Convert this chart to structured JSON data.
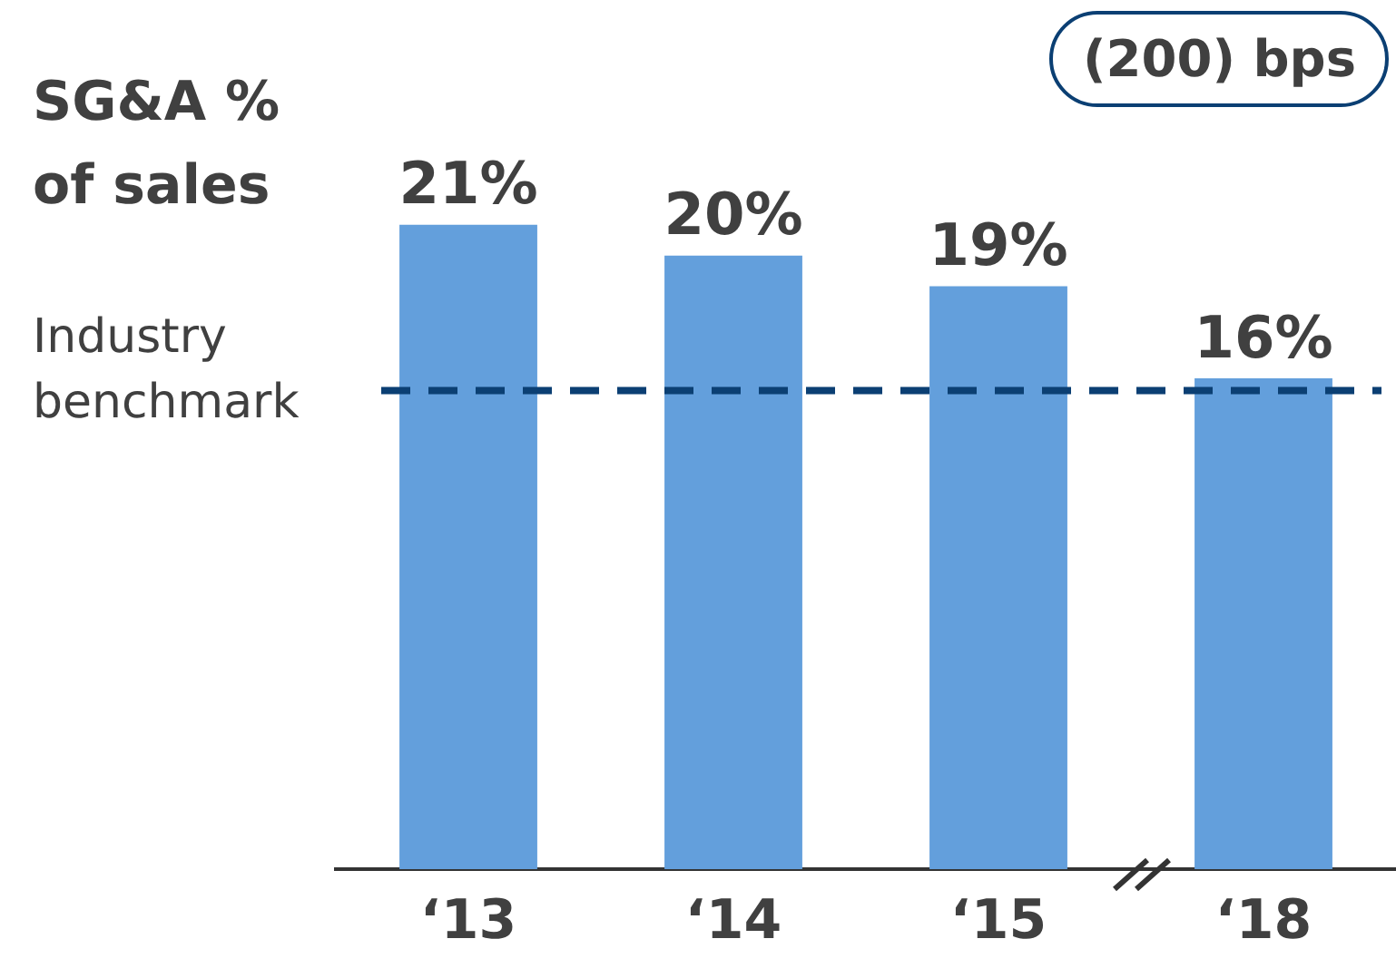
{
  "chart_data": {
    "type": "bar",
    "title": "SG&A % of sales",
    "categories": [
      "‘13",
      "‘14",
      "‘15",
      "‘18"
    ],
    "values": [
      21,
      20,
      19,
      16
    ],
    "color": "#639fdc",
    "value_labels": [
      "21%",
      "20%",
      "19%",
      "16%"
    ],
    "grid": false,
    "legend": false,
    "ref_lines": [
      {
        "axis": "y",
        "value": 15.6,
        "label": "Industry benchmark",
        "color": "#0b3f73",
        "line_style": "dashed"
      }
    ],
    "annotations": [
      "(200) bps"
    ]
  }
}
